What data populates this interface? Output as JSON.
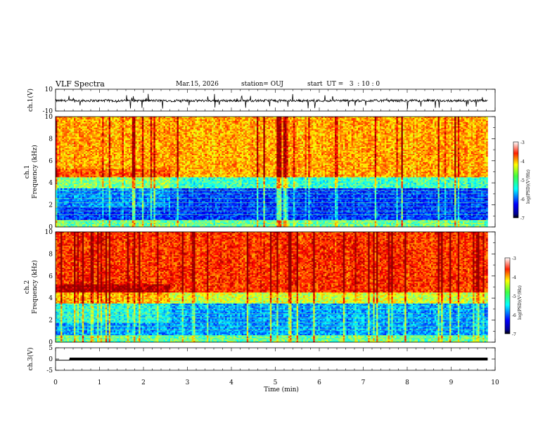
{
  "header": {
    "title": "VLF Spectra",
    "date": "Mar.15, 2026",
    "station": "station= OUJ",
    "start": "start  UT =   3  : 10 : 0"
  },
  "chart_data": [
    {
      "type": "line",
      "panel": "ch1-waveform",
      "ylabel": "ch.1(V)",
      "ylim": [
        -10,
        10
      ],
      "ytick_labels": [
        "10",
        "-10"
      ],
      "xlim": [
        0,
        10
      ],
      "description_values": {
        "baseline_v": -0.5,
        "spike_min_v": -8,
        "spike_max_v": 6,
        "end_min": 9.83
      }
    },
    {
      "type": "heatmap",
      "panel": "ch1-spectrogram",
      "ylabel": "ch.1\nFrequency (kHz)",
      "ylabel_line1": "ch.1",
      "ylabel_line2": "Frequency (kHz)",
      "ylim": [
        0,
        10
      ],
      "ytick_labels": [
        "0",
        "2",
        "4",
        "6",
        "8",
        "10"
      ],
      "xlim": [
        0,
        10
      ],
      "end_min": 9.83,
      "colorbar": {
        "label": "log(PSD)(V²/Hz)",
        "range": [
          -7,
          -3
        ],
        "tick_labels": [
          "-3",
          "-4",
          "-5",
          "-6",
          "-7"
        ]
      }
    },
    {
      "type": "heatmap",
      "panel": "ch2-spectrogram",
      "ylabel_line1": "ch.2",
      "ylabel_line2": "Frequency (kHz)",
      "ylim": [
        0,
        10
      ],
      "ytick_labels": [
        "0",
        "2",
        "4",
        "6",
        "8",
        "10"
      ],
      "xlim": [
        0,
        10
      ],
      "end_min": 9.83,
      "colorbar": {
        "label": "log(PSD)(V²/Hz)",
        "range": [
          -7,
          -3
        ],
        "tick_labels": [
          "-3",
          "-4",
          "-5",
          "-6",
          "-7"
        ]
      }
    },
    {
      "type": "line",
      "panel": "ch3-waveform",
      "ylabel": "ch.3(V)",
      "ylim": [
        -5,
        5
      ],
      "ytick_labels": [
        "5",
        "0",
        "-5"
      ],
      "xlim": [
        0,
        10
      ],
      "x": [
        0,
        0.32,
        0.32,
        9.83
      ],
      "y": [
        -0.5,
        -0.5,
        0,
        0
      ]
    }
  ],
  "xaxis": {
    "label": "Time (min)",
    "tick_labels": [
      "0",
      "1",
      "2",
      "3",
      "4",
      "5",
      "6",
      "7",
      "8",
      "9",
      "10"
    ]
  },
  "colors": {
    "jet_low": "#00008f",
    "jet_high": "#800000",
    "axis": "#000000"
  }
}
